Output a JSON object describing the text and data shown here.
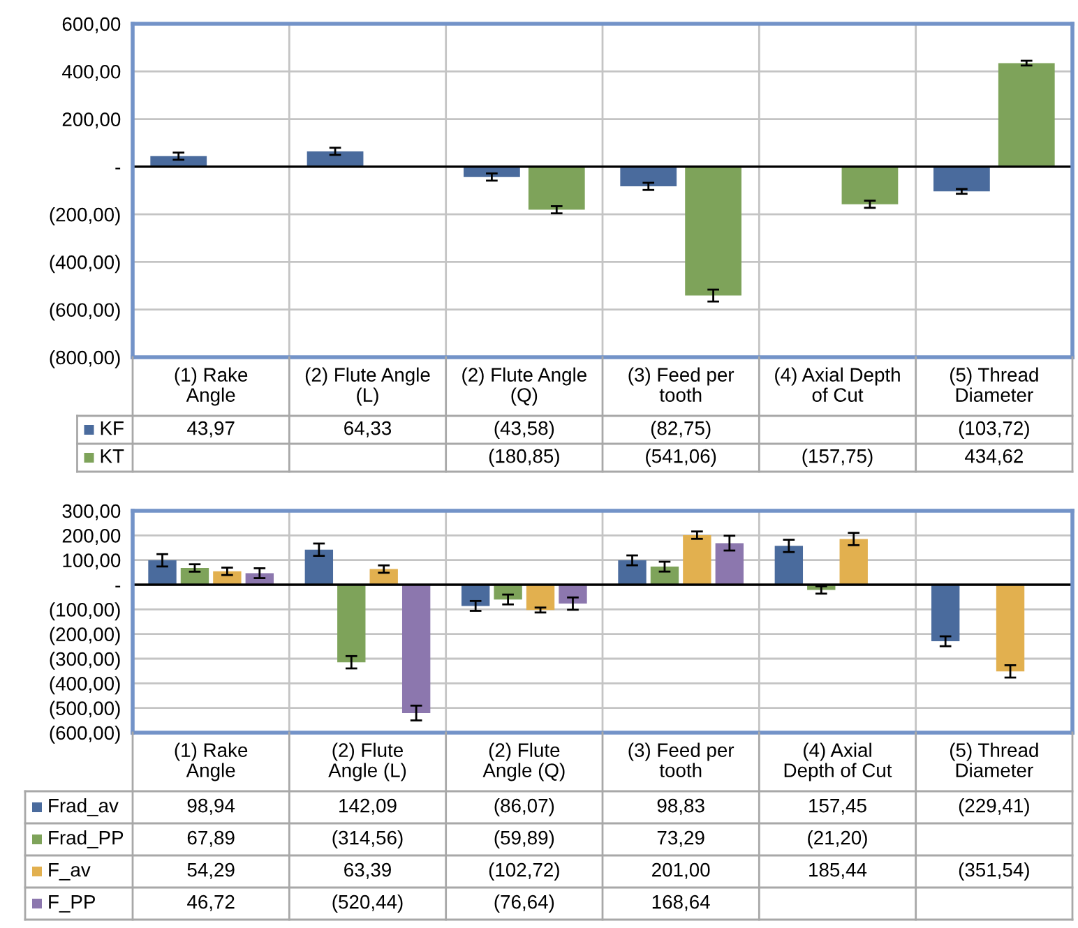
{
  "chart_data": [
    {
      "type": "bar",
      "categories": [
        "(1) Rake\nAngle",
        "(2) Flute Angle\n(L)",
        "(2) Flute Angle\n(Q)",
        "(3) Feed per\ntooth",
        "(4) Axial Depth\nof Cut",
        "(5) Thread\nDiameter"
      ],
      "series": [
        {
          "name": "KF",
          "color": "#4a6b9d",
          "values": [
            43.97,
            64.33,
            -43.58,
            -82.75,
            null,
            -103.72
          ],
          "errors": [
            15,
            15,
            15,
            15,
            null,
            10
          ],
          "value_labels": [
            "43,97",
            "64,33",
            "(43,58)",
            "(82,75)",
            null,
            "(103,72)"
          ]
        },
        {
          "name": "KT",
          "color": "#7ea35a",
          "values": [
            null,
            null,
            -180.85,
            -541.06,
            -157.75,
            434.62
          ],
          "errors": [
            null,
            null,
            15,
            25,
            15,
            10
          ],
          "value_labels": [
            null,
            null,
            "(180,85)",
            "(541,06)",
            "(157,75)",
            "434,62"
          ]
        }
      ],
      "ylim": [
        -800,
        600
      ],
      "yticks": [
        {
          "value": -800,
          "label": "(800,00)"
        },
        {
          "value": -600,
          "label": "(600,00)"
        },
        {
          "value": -400,
          "label": "(400,00)"
        },
        {
          "value": -200,
          "label": "(200,00)"
        },
        {
          "value": 0,
          "label": "-"
        },
        {
          "value": 200,
          "label": "200,00"
        },
        {
          "value": 400,
          "label": "400,00"
        },
        {
          "value": 600,
          "label": "600,00"
        }
      ],
      "grid": true,
      "legend": "bottom"
    },
    {
      "type": "bar",
      "categories": [
        "(1) Rake\nAngle",
        "(2) Flute\nAngle (L)",
        "(2) Flute\nAngle (Q)",
        "(3) Feed per\ntooth",
        "(4) Axial\nDepth of Cut",
        "(5) Thread\nDiameter"
      ],
      "series": [
        {
          "name": "Frad_av",
          "color": "#4a6b9d",
          "values": [
            98.94,
            142.09,
            -86.07,
            98.83,
            157.45,
            -229.41
          ],
          "errors": [
            25,
            25,
            20,
            20,
            25,
            20
          ],
          "value_labels": [
            "98,94",
            "142,09",
            "(86,07)",
            "98,83",
            "157,45",
            "(229,41)"
          ]
        },
        {
          "name": "Frad_PP",
          "color": "#7ea35a",
          "values": [
            67.89,
            -314.56,
            -59.89,
            73.29,
            -21.2,
            null
          ],
          "errors": [
            15,
            25,
            20,
            20,
            15,
            null
          ],
          "value_labels": [
            "67,89",
            "(314,56)",
            "(59,89)",
            "73,29",
            "(21,20)",
            null
          ]
        },
        {
          "name": "F_av",
          "color": "#e2b04f",
          "values": [
            54.29,
            63.39,
            -102.72,
            201.0,
            185.44,
            -351.54
          ],
          "errors": [
            15,
            15,
            10,
            15,
            25,
            25
          ],
          "value_labels": [
            "54,29",
            "63,39",
            "(102,72)",
            "201,00",
            "185,44",
            "(351,54)"
          ]
        },
        {
          "name": "F_PP",
          "color": "#8c77ae",
          "values": [
            46.72,
            -520.44,
            -76.64,
            168.64,
            null,
            null
          ],
          "errors": [
            20,
            30,
            25,
            30,
            null,
            null
          ],
          "value_labels": [
            "46,72",
            "(520,44)",
            "(76,64)",
            "168,64",
            null,
            null
          ]
        }
      ],
      "ylim": [
        -600,
        300
      ],
      "yticks": [
        {
          "value": -600,
          "label": "(600,00)"
        },
        {
          "value": -500,
          "label": "(500,00)"
        },
        {
          "value": -400,
          "label": "(400,00)"
        },
        {
          "value": -300,
          "label": "(300,00)"
        },
        {
          "value": -200,
          "label": "(200,00)"
        },
        {
          "value": -100,
          "label": "(100,00)"
        },
        {
          "value": 0,
          "label": "-"
        },
        {
          "value": 100,
          "label": "100,00"
        },
        {
          "value": 200,
          "label": "200,00"
        },
        {
          "value": 300,
          "label": "300,00"
        }
      ],
      "grid": true,
      "legend": "bottom"
    }
  ]
}
